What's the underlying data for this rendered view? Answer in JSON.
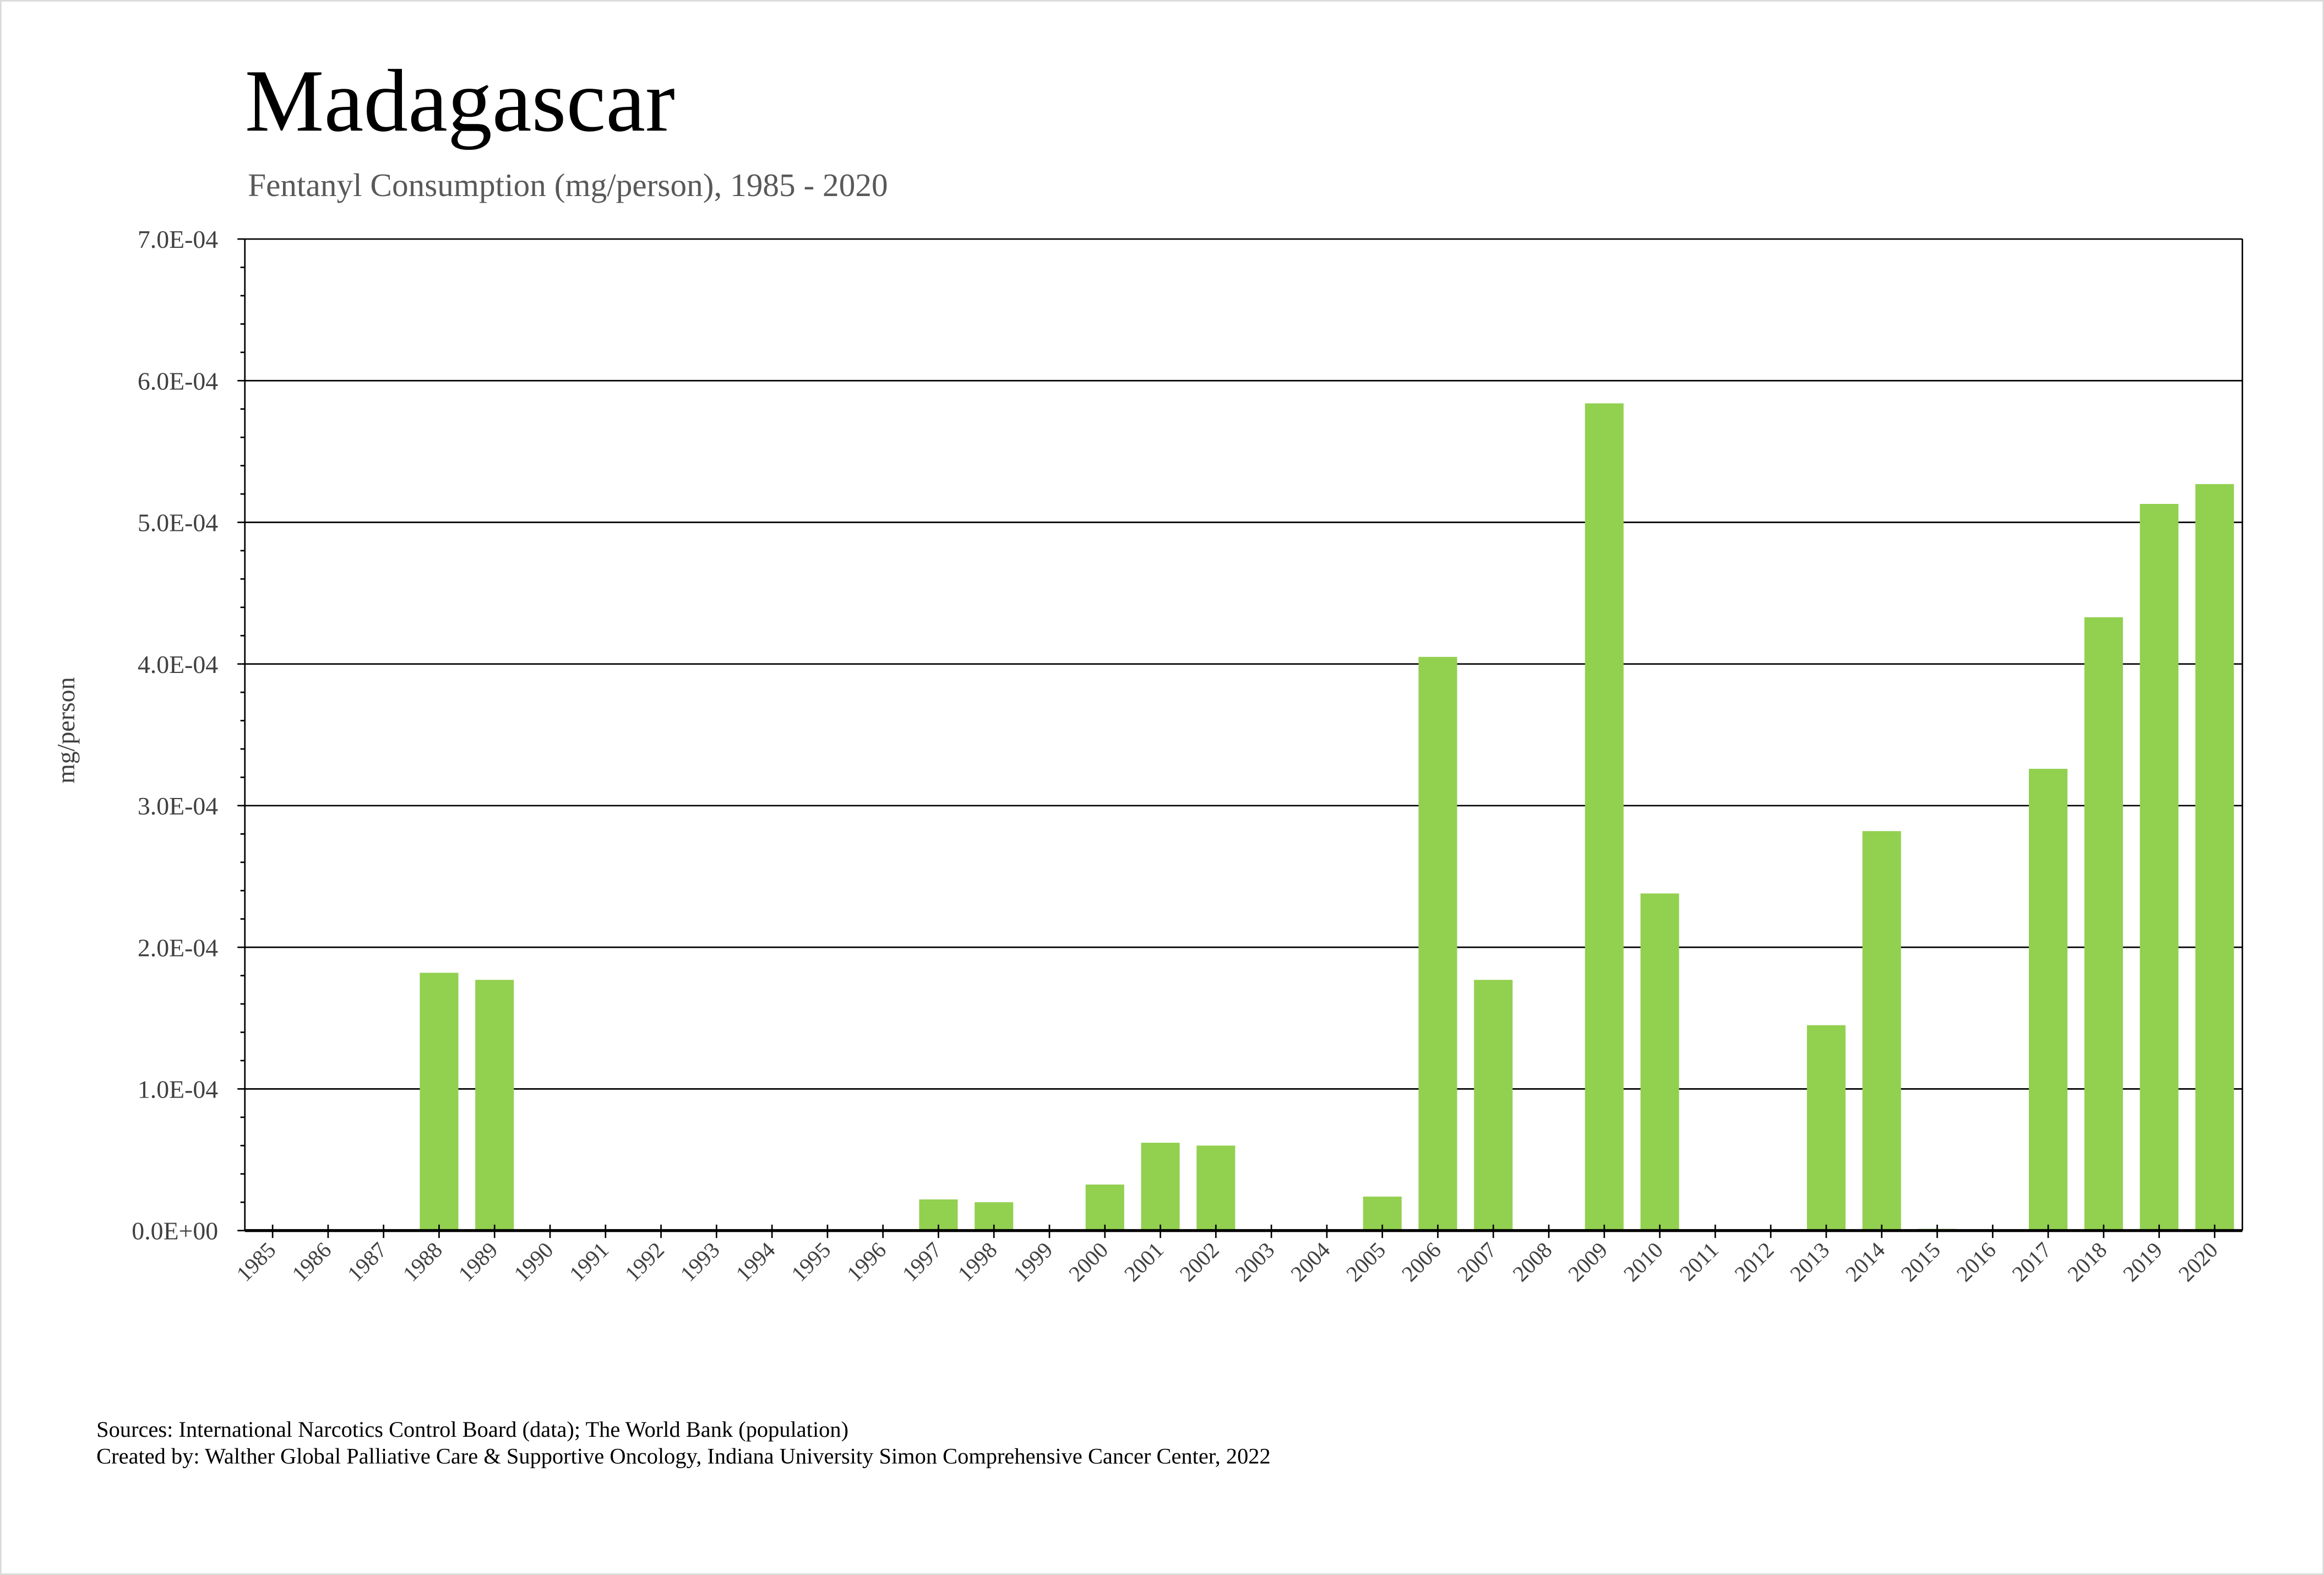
{
  "chart_data": {
    "type": "bar",
    "title": "Madagascar",
    "subtitle": "Fentanyl Consumption (mg/person), 1985 - 2020",
    "xlabel": "",
    "ylabel": "mg/person",
    "ylim": [
      0,
      0.0007
    ],
    "yticks": [
      "0.0E+00",
      "1.0E-04",
      "2.0E-04",
      "3.0E-04",
      "4.0E-04",
      "5.0E-04",
      "6.0E-04",
      "7.0E-04"
    ],
    "grid": true,
    "bar_color": "#92d050",
    "categories": [
      "1985",
      "1986",
      "1987",
      "1988",
      "1989",
      "1990",
      "1991",
      "1992",
      "1993",
      "1994",
      "1995",
      "1996",
      "1997",
      "1998",
      "1999",
      "2000",
      "2001",
      "2002",
      "2003",
      "2004",
      "2005",
      "2006",
      "2007",
      "2008",
      "2009",
      "2010",
      "2011",
      "2012",
      "2013",
      "2014",
      "2015",
      "2016",
      "2017",
      "2018",
      "2019",
      "2020"
    ],
    "values": [
      0,
      0,
      0,
      0.000182,
      0.000177,
      0,
      0,
      0,
      0,
      0,
      0,
      0,
      2.2e-05,
      2e-05,
      0,
      3.25e-05,
      6.2e-05,
      6e-05,
      0,
      0,
      2.4e-05,
      0.000405,
      0.000177,
      0,
      0.000584,
      0.000238,
      0,
      0,
      0.000145,
      0.000282,
      1.2e-06,
      6e-07,
      0.000326,
      0.000433,
      0.000513,
      0.000527
    ]
  },
  "footer": {
    "sources": "Sources: International Narcotics Control Board (data); The World Bank (population)",
    "created_by": "Created by: Walther Global Palliative Care & Supportive Oncology, Indiana University Simon Comprehensive Cancer Center, 2022"
  }
}
